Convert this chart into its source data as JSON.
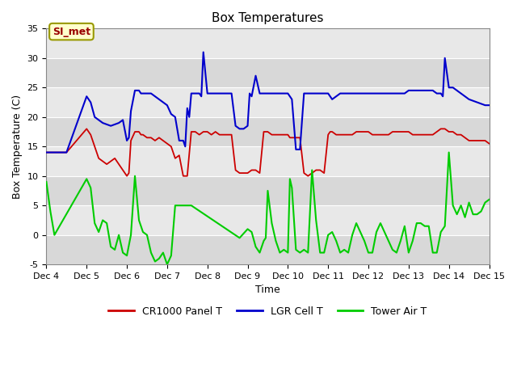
{
  "title": "Box Temperatures",
  "xlabel": "Time",
  "ylabel": "Box Temperature (C)",
  "ylim": [
    -5,
    35
  ],
  "xlim": [
    4,
    15
  ],
  "xtick_positions": [
    4,
    5,
    6,
    7,
    8,
    9,
    10,
    11,
    12,
    13,
    14,
    15
  ],
  "xtick_labels": [
    "Dec 4",
    "Dec 5",
    "Dec 6",
    "Dec 7",
    "Dec 8",
    "Dec 9",
    "Dec 10",
    "Dec 11",
    "Dec 12",
    "Dec 13",
    "Dec 14",
    "Dec 15"
  ],
  "ytick_positions": [
    -5,
    0,
    5,
    10,
    15,
    20,
    25,
    30,
    35
  ],
  "bg_color_light": "#e8e8e8",
  "bg_color_dark": "#d0d0d0",
  "line_colors": {
    "panel": "#cc0000",
    "lgr": "#0000cc",
    "tower": "#00cc00"
  },
  "legend_labels": [
    "CR1000 Panel T",
    "LGR Cell T",
    "Tower Air T"
  ],
  "annotation_text": "SI_met",
  "annotation_box_color": "#ffffcc",
  "annotation_box_edge": "#999900",
  "annotation_text_color": "#990000",
  "panel_t": {
    "x": [
      4.0,
      4.5,
      5.0,
      5.05,
      5.1,
      5.2,
      5.3,
      5.4,
      5.5,
      5.6,
      5.7,
      5.8,
      5.9,
      6.0,
      6.05,
      6.1,
      6.2,
      6.3,
      6.35,
      6.4,
      6.5,
      6.6,
      6.7,
      6.8,
      6.9,
      7.0,
      7.1,
      7.2,
      7.3,
      7.4,
      7.5,
      7.6,
      7.7,
      7.8,
      7.9,
      8.0,
      8.1,
      8.2,
      8.3,
      8.4,
      8.5,
      8.6,
      8.7,
      8.8,
      8.9,
      9.0,
      9.1,
      9.2,
      9.3,
      9.4,
      9.5,
      9.6,
      9.7,
      9.8,
      9.9,
      10.0,
      10.05,
      10.1,
      10.2,
      10.3,
      10.4,
      10.5,
      10.6,
      10.7,
      10.8,
      10.9,
      11.0,
      11.05,
      11.1,
      11.2,
      11.3,
      11.4,
      11.5,
      11.6,
      11.7,
      11.8,
      11.9,
      12.0,
      12.1,
      12.2,
      12.3,
      12.4,
      12.5,
      12.6,
      12.7,
      12.8,
      12.9,
      13.0,
      13.1,
      13.2,
      13.3,
      13.4,
      13.5,
      13.6,
      13.7,
      13.8,
      13.9,
      14.0,
      14.1,
      14.2,
      14.3,
      14.5,
      14.7,
      14.9,
      15.0
    ],
    "y": [
      14.0,
      14.0,
      18.0,
      17.5,
      17.0,
      15.0,
      13.0,
      12.5,
      12.0,
      12.5,
      13.0,
      12.0,
      11.0,
      10.0,
      10.5,
      16.0,
      17.5,
      17.5,
      17.0,
      17.0,
      16.5,
      16.5,
      16.0,
      16.5,
      16.0,
      15.5,
      15.0,
      13.0,
      13.5,
      10.0,
      10.0,
      17.5,
      17.5,
      17.0,
      17.5,
      17.5,
      17.0,
      17.5,
      17.0,
      17.0,
      17.0,
      17.0,
      11.0,
      10.5,
      10.5,
      10.5,
      11.0,
      11.0,
      10.5,
      17.5,
      17.5,
      17.0,
      17.0,
      17.0,
      17.0,
      17.0,
      16.5,
      16.5,
      16.5,
      16.5,
      10.5,
      10.0,
      10.5,
      11.0,
      11.0,
      10.5,
      17.0,
      17.5,
      17.5,
      17.0,
      17.0,
      17.0,
      17.0,
      17.0,
      17.5,
      17.5,
      17.5,
      17.5,
      17.0,
      17.0,
      17.0,
      17.0,
      17.0,
      17.5,
      17.5,
      17.5,
      17.5,
      17.5,
      17.0,
      17.0,
      17.0,
      17.0,
      17.0,
      17.0,
      17.5,
      18.0,
      18.0,
      17.5,
      17.5,
      17.0,
      17.0,
      16.0,
      16.0,
      16.0,
      15.5
    ]
  },
  "lgr_t": {
    "x": [
      4.0,
      4.5,
      5.0,
      5.05,
      5.1,
      5.2,
      5.4,
      5.6,
      5.8,
      5.9,
      6.0,
      6.05,
      6.1,
      6.2,
      6.3,
      6.35,
      6.4,
      6.5,
      6.6,
      6.7,
      6.8,
      6.9,
      7.0,
      7.1,
      7.2,
      7.3,
      7.4,
      7.45,
      7.5,
      7.55,
      7.6,
      7.7,
      7.8,
      7.85,
      7.9,
      8.0,
      8.1,
      8.2,
      8.3,
      8.4,
      8.5,
      8.6,
      8.7,
      8.8,
      8.9,
      9.0,
      9.05,
      9.1,
      9.2,
      9.3,
      9.4,
      9.5,
      9.6,
      9.7,
      9.8,
      9.9,
      10.0,
      10.05,
      10.1,
      10.2,
      10.3,
      10.4,
      10.5,
      10.6,
      10.7,
      10.8,
      10.9,
      11.0,
      11.05,
      11.1,
      11.2,
      11.3,
      11.4,
      11.5,
      11.6,
      11.7,
      11.8,
      11.9,
      12.0,
      12.1,
      12.2,
      12.3,
      12.4,
      12.5,
      12.6,
      12.7,
      12.8,
      12.9,
      13.0,
      13.1,
      13.2,
      13.3,
      13.4,
      13.5,
      13.6,
      13.7,
      13.8,
      13.85,
      13.9,
      14.0,
      14.1,
      14.2,
      14.3,
      14.5,
      14.7,
      14.9,
      15.0
    ],
    "y": [
      14.0,
      14.0,
      23.5,
      23.0,
      22.5,
      20.0,
      19.0,
      18.5,
      19.0,
      19.5,
      16.0,
      16.5,
      21.0,
      24.5,
      24.5,
      24.0,
      24.0,
      24.0,
      24.0,
      23.5,
      23.0,
      22.5,
      22.0,
      20.5,
      20.0,
      16.0,
      16.0,
      15.0,
      21.5,
      20.0,
      24.0,
      24.0,
      24.0,
      23.5,
      31.0,
      24.0,
      24.0,
      24.0,
      24.0,
      24.0,
      24.0,
      24.0,
      18.5,
      18.0,
      18.0,
      18.5,
      24.0,
      23.5,
      27.0,
      24.0,
      24.0,
      24.0,
      24.0,
      24.0,
      24.0,
      24.0,
      24.0,
      23.5,
      23.0,
      14.5,
      14.5,
      24.0,
      24.0,
      24.0,
      24.0,
      24.0,
      24.0,
      24.0,
      23.5,
      23.0,
      23.5,
      24.0,
      24.0,
      24.0,
      24.0,
      24.0,
      24.0,
      24.0,
      24.0,
      24.0,
      24.0,
      24.0,
      24.0,
      24.0,
      24.0,
      24.0,
      24.0,
      24.0,
      24.5,
      24.5,
      24.5,
      24.5,
      24.5,
      24.5,
      24.5,
      24.0,
      24.0,
      23.5,
      30.0,
      25.0,
      25.0,
      24.5,
      24.0,
      23.0,
      22.5,
      22.0,
      22.0
    ]
  },
  "tower_t": {
    "x": [
      4.0,
      4.1,
      4.2,
      5.0,
      5.1,
      5.2,
      5.3,
      5.4,
      5.5,
      5.6,
      5.7,
      5.8,
      5.9,
      6.0,
      6.1,
      6.2,
      6.3,
      6.4,
      6.5,
      6.6,
      6.7,
      6.8,
      6.9,
      7.0,
      7.1,
      7.2,
      7.3,
      7.4,
      7.5,
      7.6,
      8.8,
      9.0,
      9.1,
      9.2,
      9.3,
      9.35,
      9.4,
      9.45,
      9.5,
      9.6,
      9.7,
      9.8,
      9.9,
      10.0,
      10.05,
      10.1,
      10.2,
      10.3,
      10.4,
      10.5,
      10.6,
      10.7,
      10.8,
      10.9,
      11.0,
      11.1,
      11.2,
      11.3,
      11.4,
      11.5,
      11.6,
      11.7,
      11.8,
      11.9,
      12.0,
      12.1,
      12.2,
      12.3,
      12.4,
      12.5,
      12.6,
      12.7,
      12.8,
      12.9,
      13.0,
      13.1,
      13.2,
      13.3,
      13.4,
      13.5,
      13.6,
      13.7,
      13.8,
      13.9,
      14.0,
      14.1,
      14.2,
      14.3,
      14.4,
      14.5,
      14.6,
      14.7,
      14.8,
      14.9,
      15.0
    ],
    "y": [
      9.0,
      4.0,
      0.0,
      9.5,
      8.0,
      2.0,
      0.5,
      2.5,
      2.0,
      -2.0,
      -2.5,
      0.0,
      -3.0,
      -3.5,
      0.0,
      10.0,
      2.5,
      0.5,
      0.0,
      -3.0,
      -4.5,
      -4.0,
      -3.0,
      -5.0,
      -3.5,
      5.0,
      5.0,
      5.0,
      5.0,
      5.0,
      -0.5,
      1.0,
      0.5,
      -2.0,
      -3.0,
      -2.0,
      -1.0,
      -0.5,
      7.5,
      2.0,
      -1.0,
      -3.0,
      -2.5,
      -3.0,
      9.5,
      8.0,
      -2.5,
      -3.0,
      -2.5,
      -3.0,
      11.0,
      2.5,
      -3.0,
      -3.0,
      0.0,
      0.5,
      -1.0,
      -3.0,
      -2.5,
      -3.0,
      0.0,
      2.0,
      0.5,
      -1.0,
      -3.0,
      -3.0,
      0.5,
      2.0,
      0.5,
      -1.0,
      -2.5,
      -3.0,
      -1.0,
      1.5,
      -3.0,
      -1.0,
      2.0,
      2.0,
      1.5,
      1.5,
      -3.0,
      -3.0,
      0.5,
      1.5,
      14.0,
      5.0,
      3.5,
      5.0,
      3.0,
      5.5,
      3.5,
      3.5,
      4.0,
      5.5,
      6.0
    ]
  }
}
